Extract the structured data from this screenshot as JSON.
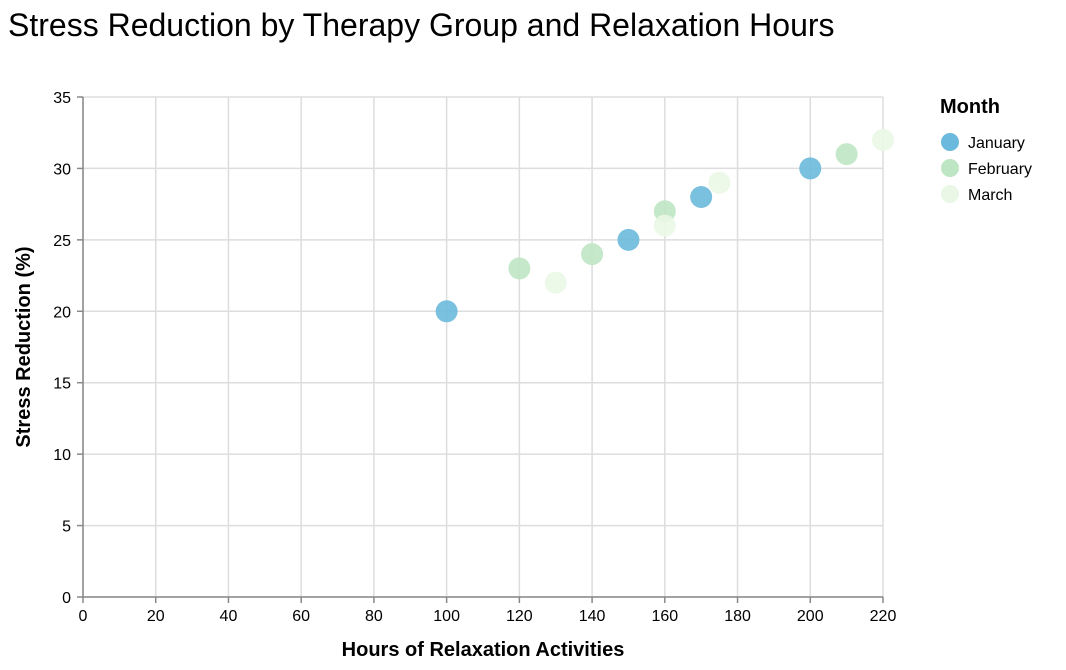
{
  "chart_data": {
    "type": "scatter",
    "title": "Stress Reduction by Therapy Group and Relaxation Hours",
    "xlabel": "Hours of Relaxation Activities",
    "ylabel": "Stress Reduction (%)",
    "xlim": [
      0,
      220
    ],
    "ylim": [
      0,
      35
    ],
    "x_ticks": [
      0,
      20,
      40,
      60,
      80,
      100,
      120,
      140,
      160,
      180,
      200,
      220
    ],
    "y_ticks": [
      0,
      5,
      10,
      15,
      20,
      25,
      30,
      35
    ],
    "grid": true,
    "legend": {
      "title": "Month",
      "placement": "right"
    },
    "series": [
      {
        "name": "January",
        "color": "#6bb9dc",
        "points": [
          {
            "x": 100,
            "y": 20
          },
          {
            "x": 150,
            "y": 25
          },
          {
            "x": 170,
            "y": 28
          },
          {
            "x": 200,
            "y": 30
          }
        ]
      },
      {
        "name": "February",
        "color": "#bfe6c4",
        "points": [
          {
            "x": 120,
            "y": 23
          },
          {
            "x": 140,
            "y": 24
          },
          {
            "x": 160,
            "y": 27
          },
          {
            "x": 210,
            "y": 31
          }
        ]
      },
      {
        "name": "March",
        "color": "#eaf7e6",
        "points": [
          {
            "x": 130,
            "y": 22
          },
          {
            "x": 160,
            "y": 26
          },
          {
            "x": 175,
            "y": 29
          },
          {
            "x": 220,
            "y": 32
          }
        ]
      }
    ]
  }
}
